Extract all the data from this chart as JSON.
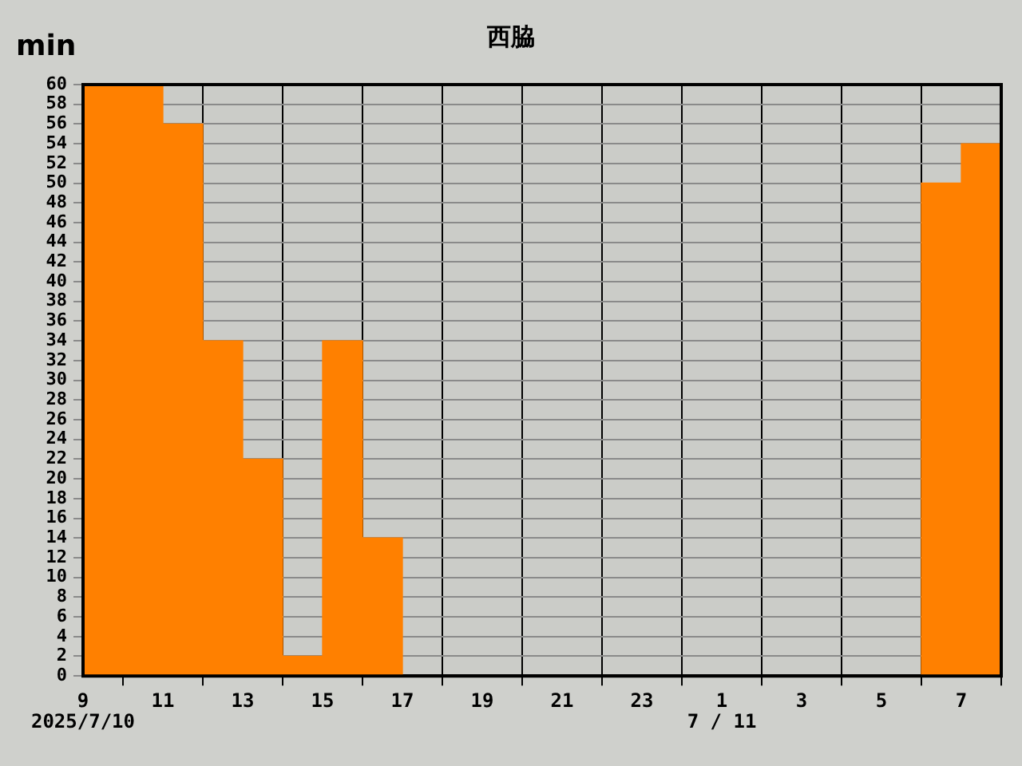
{
  "chart_data": {
    "type": "histogram",
    "title": "西脇",
    "ylabel": "min",
    "bins": [
      "2025-07-10T09:00",
      "2025-07-10T10:00",
      "2025-07-10T11:00",
      "2025-07-10T12:00",
      "2025-07-10T13:00",
      "2025-07-10T14:00",
      "2025-07-10T15:00",
      "2025-07-10T16:00",
      "2025-07-10T17:00",
      "2025-07-10T18:00",
      "2025-07-10T19:00",
      "2025-07-10T20:00",
      "2025-07-10T21:00",
      "2025-07-10T22:00",
      "2025-07-10T23:00",
      "2025-07-11T00:00",
      "2025-07-11T01:00",
      "2025-07-11T02:00",
      "2025-07-11T03:00",
      "2025-07-11T04:00",
      "2025-07-11T05:00",
      "2025-07-11T06:00",
      "2025-07-11T07:00",
      "2025-07-11T08:00"
    ],
    "values": [
      60,
      60,
      56,
      34,
      22,
      2,
      34,
      14,
      0,
      0,
      0,
      0,
      0,
      0,
      0,
      0,
      0,
      0,
      0,
      0,
      0,
      50,
      54
    ],
    "color": "#ff8000",
    "xlim": [
      "2025-07-10T09:00",
      "2025-07-11T08:00"
    ],
    "xticks": [
      {
        "value": "2025-07-10T09:00",
        "label": "9"
      },
      {
        "value": "2025-07-10T11:00",
        "label": "11"
      },
      {
        "value": "2025-07-10T13:00",
        "label": "13"
      },
      {
        "value": "2025-07-10T15:00",
        "label": "15"
      },
      {
        "value": "2025-07-10T17:00",
        "label": "17"
      },
      {
        "value": "2025-07-10T19:00",
        "label": "19"
      },
      {
        "value": "2025-07-10T21:00",
        "label": "21"
      },
      {
        "value": "2025-07-10T23:00",
        "label": "23"
      },
      {
        "value": "2025-07-11T01:00",
        "label": "1"
      },
      {
        "value": "2025-07-11T03:00",
        "label": "3"
      },
      {
        "value": "2025-07-11T05:00",
        "label": "5"
      },
      {
        "value": "2025-07-11T07:00",
        "label": "7"
      }
    ],
    "ylim": [
      0,
      60
    ],
    "yticks": [
      0,
      2,
      4,
      6,
      8,
      10,
      12,
      14,
      16,
      18,
      20,
      22,
      24,
      26,
      28,
      30,
      32,
      34,
      36,
      38,
      40,
      42,
      44,
      46,
      48,
      50,
      52,
      54,
      56,
      58,
      60
    ],
    "grid": true,
    "annotations": [
      "2025/7/10",
      "7 / 11"
    ]
  }
}
